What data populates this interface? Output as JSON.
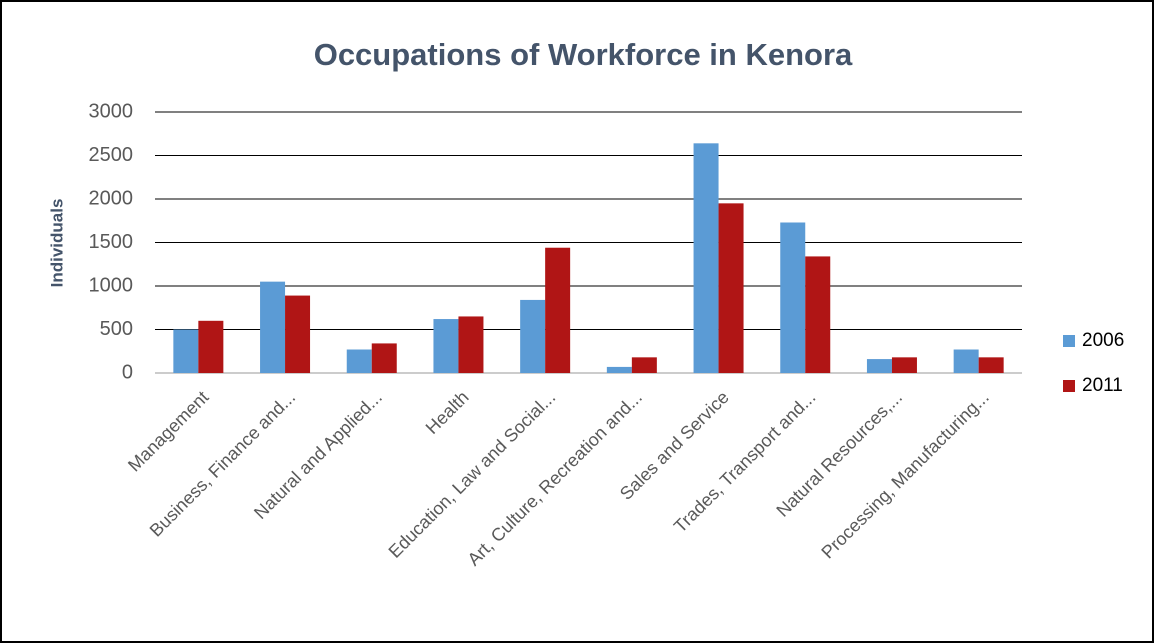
{
  "chart_data": {
    "type": "bar",
    "title": "Occupations of Workforce in Kenora",
    "y_label": "Individuals",
    "categories": [
      "Management",
      "Business, Finance and...",
      "Natural and Applied...",
      "Health",
      "Education, Law and Social...",
      "Art, Culture, Recreation and...",
      "Sales and Service",
      "Trades, Transport and...",
      "Natural Resources,...",
      "Processing, Manufacturing..."
    ],
    "series": [
      {
        "name": "2006",
        "color": "#5b9bd5",
        "values": [
          500,
          1050,
          270,
          620,
          840,
          70,
          2640,
          1730,
          160,
          270
        ]
      },
      {
        "name": "2011",
        "color": "#b01515",
        "values": [
          600,
          890,
          340,
          650,
          1440,
          180,
          1950,
          1340,
          180,
          180
        ]
      }
    ],
    "ylim": [
      0,
      3000
    ],
    "yticks": [
      0,
      500,
      1000,
      1500,
      2000,
      2500,
      3000
    ],
    "grid": true,
    "legend": "right"
  }
}
